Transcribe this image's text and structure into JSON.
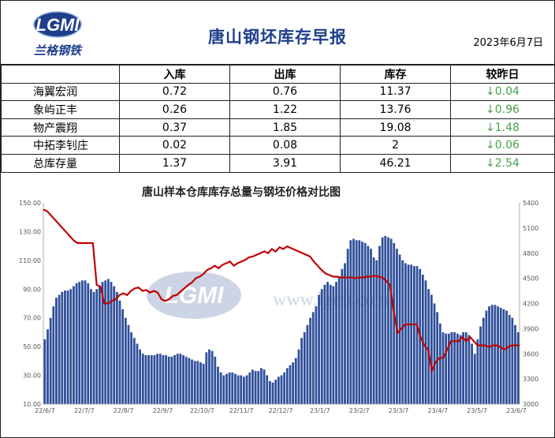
{
  "header": {
    "logo_text": "LGMI",
    "logo_caption": "兰格钢铁",
    "title": "唐山钢坯库存早报",
    "date": "2023年6月7日"
  },
  "table": {
    "columns": [
      "",
      "入库",
      "出库",
      "库存",
      "较昨日"
    ],
    "rows": [
      {
        "name": "海翼宏润",
        "in": "0.72",
        "out": "0.76",
        "stock": "11.37",
        "change": "↓0.04"
      },
      {
        "name": "象屿正丰",
        "in": "0.26",
        "out": "1.22",
        "stock": "13.76",
        "change": "↓0.96"
      },
      {
        "name": "物产震翔",
        "in": "0.37",
        "out": "1.85",
        "stock": "19.08",
        "change": "↓1.48"
      },
      {
        "name": "中拓李钊庄",
        "in": "0.02",
        "out": "0.08",
        "stock": "2",
        "change": "↓0.06"
      },
      {
        "name": "总库存量",
        "in": "1.37",
        "out": "3.91",
        "stock": "46.21",
        "change": "↓2.54"
      }
    ]
  },
  "colors": {
    "title": "#1f3f8c",
    "bars": "#2f4f9a",
    "line": "#c00000",
    "decrease": "#46a24a"
  },
  "chart_data": {
    "type": "bar",
    "title": "唐山样本仓库库存总量与钢坯价格对比图",
    "watermark": "www.lgmi.com",
    "x_ticks": [
      "22/6/7",
      "22/7/7",
      "22/8/7",
      "22/9/7",
      "22/10/7",
      "22/11/7",
      "22/12/7",
      "23/1/7",
      "23/2/7",
      "23/3/7",
      "23/4/7",
      "23/5/7",
      "23/6/7"
    ],
    "y_left": {
      "ticks": [
        "10.00",
        "30.00",
        "50.00",
        "70.00",
        "90.00",
        "110.00",
        "130.00",
        "150.00"
      ],
      "lim": [
        10,
        150
      ]
    },
    "y_right": {
      "ticks": [
        "3000",
        "3300",
        "3600",
        "3900",
        "4200",
        "4500",
        "4800",
        "5100",
        "5400"
      ],
      "lim": [
        3000,
        5400
      ]
    },
    "series": [
      {
        "axis": "left",
        "values": [
          55,
          62,
          70,
          78,
          84,
          86,
          88,
          89,
          89,
          90,
          92,
          94,
          95,
          96,
          96,
          94,
          90,
          88,
          90,
          92,
          95,
          96,
          97,
          95,
          92,
          88,
          82,
          76,
          70,
          65,
          60,
          56,
          52,
          48,
          45,
          44,
          44,
          44,
          44,
          45,
          45,
          44,
          44,
          43,
          43,
          44,
          45,
          45,
          44,
          43,
          42,
          41,
          40,
          40,
          39,
          38,
          46,
          48,
          47,
          43,
          36,
          32,
          30,
          31,
          32,
          32,
          31,
          30,
          30,
          29,
          30,
          32,
          34,
          33,
          33,
          35,
          34,
          30,
          26,
          25,
          27,
          29,
          30,
          32,
          35,
          37,
          39,
          42,
          48,
          56,
          60,
          65,
          70,
          74,
          78,
          86,
          90,
          93,
          95,
          93,
          92,
          95,
          98,
          104,
          108,
          118,
          124,
          125,
          124,
          124,
          123,
          122,
          120,
          118,
          112,
          110,
          120,
          126,
          127,
          126,
          125,
          122,
          118,
          114,
          110,
          108,
          107,
          107,
          106,
          106,
          104,
          100,
          96,
          90,
          86,
          80,
          74,
          66,
          60,
          59,
          59,
          60,
          60,
          59,
          58,
          60,
          60,
          58,
          52,
          45,
          55,
          64,
          70,
          75,
          78,
          79,
          79,
          78,
          77,
          76,
          75,
          72,
          70,
          65,
          60
        ]
      },
      {
        "axis": "right",
        "values": [
          5320,
          5300,
          5250,
          5200,
          5150,
          5100,
          5050,
          5000,
          4950,
          4920,
          4920,
          4920,
          4920,
          4920,
          4420,
          4400,
          4200,
          4200,
          4230,
          4250,
          4300,
          4320,
          4300,
          4350,
          4380,
          4390,
          4350,
          4360,
          4330,
          4350,
          4330,
          4250,
          4230,
          4250,
          4290,
          4300,
          4340,
          4380,
          4420,
          4450,
          4500,
          4520,
          4550,
          4600,
          4620,
          4650,
          4620,
          4660,
          4680,
          4700,
          4650,
          4680,
          4700,
          4720,
          4750,
          4760,
          4780,
          4800,
          4820,
          4800,
          4850,
          4820,
          4870,
          4850,
          4880,
          4860,
          4840,
          4820,
          4800,
          4780,
          4760,
          4700,
          4650,
          4600,
          4560,
          4540,
          4520,
          4520,
          4510,
          4510,
          4510,
          4510,
          4500,
          4510,
          4510,
          4520,
          4520,
          4530,
          4520,
          4510,
          4470,
          4420,
          4100,
          3850,
          3900,
          3950,
          3950,
          3950,
          3950,
          3800,
          3700,
          3650,
          3400,
          3500,
          3550,
          3550,
          3650,
          3750,
          3750,
          3750,
          3800,
          3750,
          3800,
          3750,
          3700,
          3700,
          3700,
          3680,
          3700,
          3700,
          3680,
          3650,
          3680,
          3700,
          3700,
          3700
        ]
      }
    ]
  }
}
